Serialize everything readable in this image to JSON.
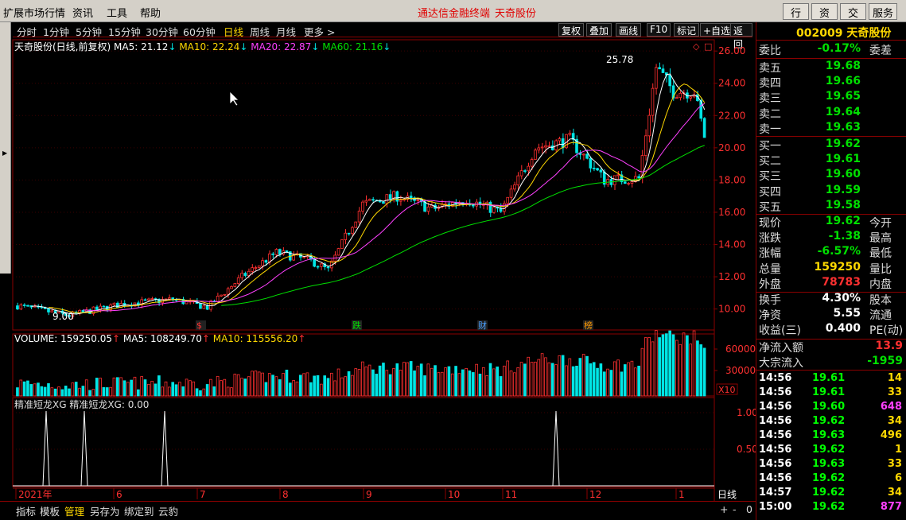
{
  "menubar": {
    "items": [
      "扩展市场行情",
      "资讯",
      "工具",
      "帮助"
    ],
    "title_left": "通达信金融终端",
    "title_right": "天奇股份",
    "right_buttons": [
      "行情",
      "资讯",
      "交易",
      "服务"
    ]
  },
  "periods": {
    "items": [
      "分时",
      "1分钟",
      "5分钟",
      "15分钟",
      "30分钟",
      "60分钟",
      "日线",
      "周线",
      "月线",
      "更多 >"
    ],
    "active": "日线",
    "tools": [
      "复权",
      "叠加",
      "画线",
      "F10",
      "标记",
      "+自选",
      "返回"
    ]
  },
  "ma": {
    "name": "天奇股份(日线,前复权)",
    "ma5": "MA5: 21.12",
    "ma10": "MA10: 22.24",
    "ma20": "MA20: 22.87",
    "ma60": "MA60: 21.16",
    "high_label": "25.78",
    "low_label": "9.00"
  },
  "price_axis": [
    "26.00",
    "24.00",
    "22.00",
    "20.00",
    "18.00",
    "16.00",
    "14.00",
    "12.00",
    "10.00"
  ],
  "markers": [
    {
      "text": "$",
      "color": "#ff3030"
    },
    {
      "text": "跌",
      "color": "#00e000"
    },
    {
      "text": "财",
      "color": "#4aa0ff"
    },
    {
      "text": "榜",
      "color": "#ff9900"
    }
  ],
  "volume": {
    "label": "VOLUME: 159250.05",
    "ma5": "MA5: 108249.70",
    "ma10": "MA10: 115556.20",
    "axis": [
      "60000",
      "30000"
    ],
    "unit": "X10"
  },
  "indicator": {
    "label": "精准短龙XG  精准短龙XG: 0.00",
    "axis": [
      "1.00",
      "0.50"
    ]
  },
  "time_axis": {
    "labels": [
      "2021年",
      "6",
      "7",
      "8",
      "9",
      "10",
      "11",
      "12",
      "1"
    ],
    "period": "日线"
  },
  "bottombar": {
    "items": [
      "指标",
      "模板",
      "管理",
      "另存为",
      "绑定到",
      "云豹"
    ],
    "active": "管理",
    "controls": [
      "+",
      "-",
      "0"
    ]
  },
  "quote": {
    "code": "002009",
    "name": "天奇股份",
    "committee": {
      "label": "委比",
      "value": "-0.17%",
      "label2": "委差"
    },
    "asks": [
      {
        "label": "卖五",
        "price": "19.68"
      },
      {
        "label": "卖四",
        "price": "19.66"
      },
      {
        "label": "卖三",
        "price": "19.65"
      },
      {
        "label": "卖二",
        "price": "19.64"
      },
      {
        "label": "卖一",
        "price": "19.63"
      }
    ],
    "bids": [
      {
        "label": "买一",
        "price": "19.62"
      },
      {
        "label": "买二",
        "price": "19.61"
      },
      {
        "label": "买三",
        "price": "19.60"
      },
      {
        "label": "买四",
        "price": "19.59"
      },
      {
        "label": "买五",
        "price": "19.58"
      }
    ],
    "stats": [
      {
        "label": "现价",
        "value": "19.62",
        "color": "#00e000",
        "label2": "今开"
      },
      {
        "label": "涨跌",
        "value": "-1.38",
        "color": "#00e000",
        "label2": "最高"
      },
      {
        "label": "涨幅",
        "value": "-6.57%",
        "color": "#00e000",
        "label2": "最低"
      },
      {
        "label": "总量",
        "value": "159250",
        "color": "#ffd800",
        "label2": "量比"
      },
      {
        "label": "外盘",
        "value": "78783",
        "color": "#ff3030",
        "label2": "内盘"
      }
    ],
    "stats2": [
      {
        "label": "换手",
        "value": "4.30%",
        "label2": "股本"
      },
      {
        "label": "净资",
        "value": "5.55",
        "label2": "流通"
      },
      {
        "label": "收益(三)",
        "value": "0.400",
        "label2": "PE(动)"
      }
    ],
    "flows": [
      {
        "label": "净流入额",
        "value": "13.9",
        "color": "#ff3030"
      },
      {
        "label": "大宗流入",
        "value": "-1959",
        "color": "#00e000"
      }
    ],
    "ticks": [
      {
        "time": "14:56",
        "price": "19.61",
        "vol": "14",
        "color": "#ffd800"
      },
      {
        "time": "14:56",
        "price": "19.61",
        "vol": "33",
        "color": "#ffd800"
      },
      {
        "time": "14:56",
        "price": "19.60",
        "vol": "648",
        "color": "#ff40ff"
      },
      {
        "time": "14:56",
        "price": "19.62",
        "vol": "34",
        "color": "#ffd800"
      },
      {
        "time": "14:56",
        "price": "19.63",
        "vol": "496",
        "color": "#ffd800"
      },
      {
        "time": "14:56",
        "price": "19.62",
        "vol": "1",
        "color": "#ffd800"
      },
      {
        "time": "14:56",
        "price": "19.63",
        "vol": "33",
        "color": "#ffd800"
      },
      {
        "time": "14:56",
        "price": "19.62",
        "vol": "6",
        "color": "#ffd800"
      },
      {
        "time": "14:57",
        "price": "19.62",
        "vol": "34",
        "color": "#ffd800"
      },
      {
        "time": "15:00",
        "price": "19.62",
        "vol": "877",
        "color": "#ff40ff"
      }
    ]
  }
}
